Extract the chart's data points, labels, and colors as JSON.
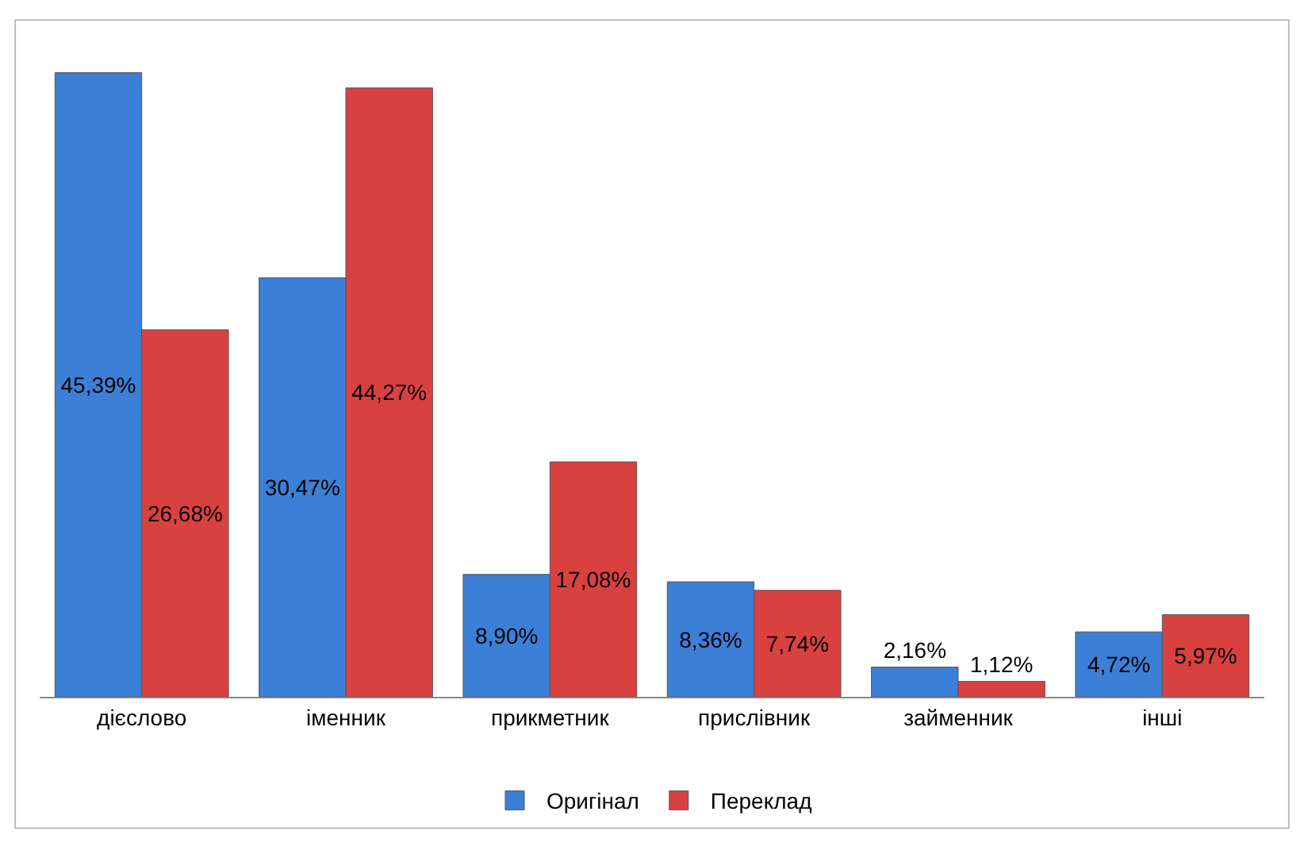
{
  "chart_data": {
    "type": "bar",
    "categories": [
      "дієслово",
      "іменник",
      "прикметник",
      "прислівник",
      "займенник",
      "інші"
    ],
    "series": [
      {
        "name": "Оригінал",
        "color": "#3c7fd6",
        "values": [
          45.39,
          30.47,
          8.9,
          8.36,
          2.16,
          4.72
        ],
        "value_labels": [
          "45,39%",
          "30,47%",
          "8,90%",
          "8,36%",
          "2,16%",
          "4,72%"
        ]
      },
      {
        "name": "Переклад",
        "color": "#d94141",
        "values": [
          26.68,
          44.27,
          17.08,
          7.74,
          1.12,
          5.97
        ],
        "value_labels": [
          "26,68%",
          "44,27%",
          "17,08%",
          "7,74%",
          "1,12%",
          "5,97%"
        ]
      }
    ],
    "legend": "bottom",
    "tick_labels": "x"
  }
}
